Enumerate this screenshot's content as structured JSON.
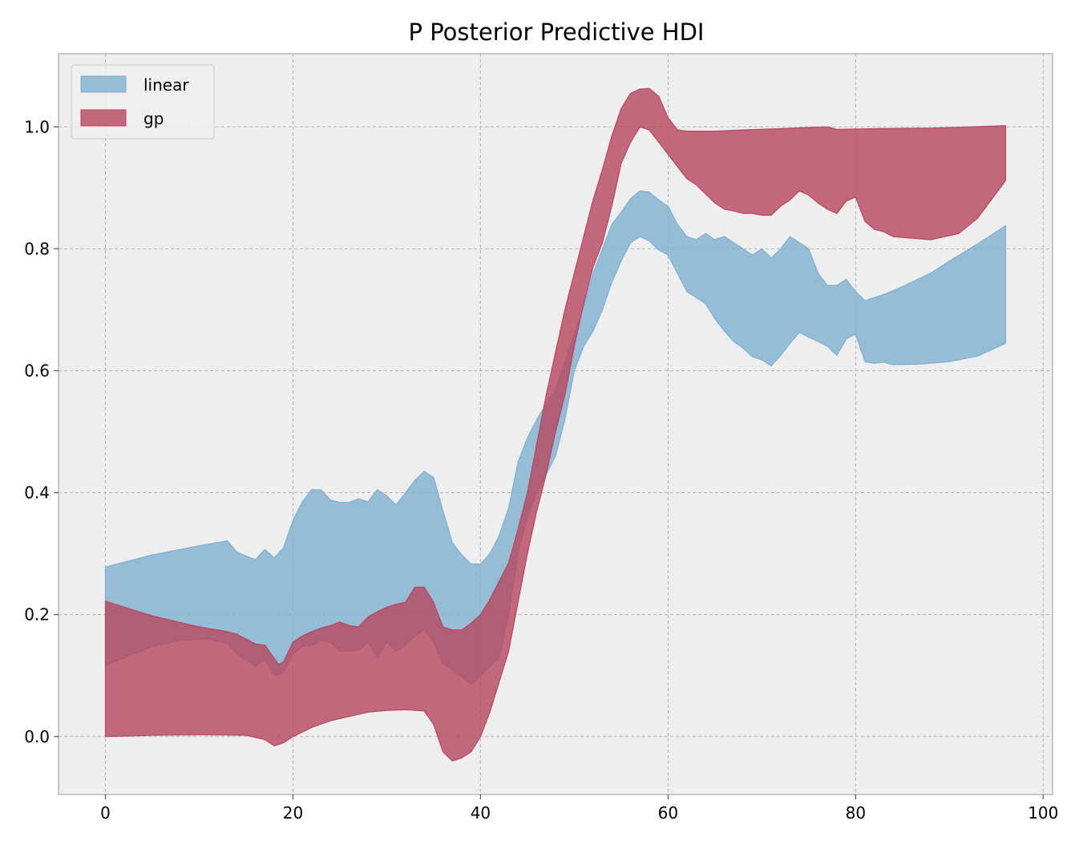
{
  "chart_data": {
    "type": "area",
    "title": "P Posterior Predictive HDI",
    "xlabel": "",
    "ylabel": "",
    "xlim": [
      -5,
      101
    ],
    "ylim": [
      -0.095,
      1.12
    ],
    "x_ticks": [
      0,
      20,
      40,
      60,
      80,
      100
    ],
    "x_tick_labels": [
      "0",
      "20",
      "40",
      "60",
      "80",
      "100"
    ],
    "y_ticks": [
      0.0,
      0.2,
      0.4,
      0.6,
      0.8,
      1.0
    ],
    "y_tick_labels": [
      "0.0",
      "0.2",
      "0.4",
      "0.6",
      "0.8",
      "1.0"
    ],
    "grid": true,
    "legend_position": "top-left",
    "background": "#eeeeee",
    "series": [
      {
        "name": "linear",
        "color": "#7fb0d0",
        "upper": [
          [
            0,
            0.278
          ],
          [
            5,
            0.298
          ],
          [
            10,
            0.313
          ],
          [
            13,
            0.321
          ],
          [
            14,
            0.303
          ],
          [
            15,
            0.296
          ],
          [
            16,
            0.29
          ],
          [
            17,
            0.307
          ],
          [
            18,
            0.293
          ],
          [
            19,
            0.31
          ],
          [
            20,
            0.355
          ],
          [
            21,
            0.385
          ],
          [
            22,
            0.405
          ],
          [
            23,
            0.405
          ],
          [
            24,
            0.388
          ],
          [
            25,
            0.384
          ],
          [
            26,
            0.384
          ],
          [
            27,
            0.39
          ],
          [
            28,
            0.385
          ],
          [
            29,
            0.405
          ],
          [
            30,
            0.395
          ],
          [
            31,
            0.38
          ],
          [
            32,
            0.4
          ],
          [
            33,
            0.42
          ],
          [
            34,
            0.435
          ],
          [
            35,
            0.425
          ],
          [
            36,
            0.37
          ],
          [
            37,
            0.318
          ],
          [
            38,
            0.298
          ],
          [
            39,
            0.283
          ],
          [
            40,
            0.283
          ],
          [
            41,
            0.3
          ],
          [
            42,
            0.33
          ],
          [
            43,
            0.375
          ],
          [
            44,
            0.45
          ],
          [
            45,
            0.49
          ],
          [
            46,
            0.52
          ],
          [
            47,
            0.545
          ],
          [
            48,
            0.57
          ],
          [
            49,
            0.615
          ],
          [
            50,
            0.66
          ],
          [
            51,
            0.705
          ],
          [
            52,
            0.76
          ],
          [
            53,
            0.8
          ],
          [
            54,
            0.84
          ],
          [
            55,
            0.86
          ],
          [
            56,
            0.882
          ],
          [
            57,
            0.895
          ],
          [
            58,
            0.893
          ],
          [
            59,
            0.88
          ],
          [
            60,
            0.87
          ],
          [
            61,
            0.84
          ],
          [
            62,
            0.82
          ],
          [
            63,
            0.815
          ],
          [
            64,
            0.825
          ],
          [
            65,
            0.815
          ],
          [
            66,
            0.82
          ],
          [
            67,
            0.81
          ],
          [
            68,
            0.8
          ],
          [
            69,
            0.79
          ],
          [
            70,
            0.8
          ],
          [
            71,
            0.785
          ],
          [
            72,
            0.8
          ],
          [
            73,
            0.82
          ],
          [
            74,
            0.81
          ],
          [
            75,
            0.8
          ],
          [
            76,
            0.76
          ],
          [
            77,
            0.74
          ],
          [
            78,
            0.74
          ],
          [
            79,
            0.75
          ],
          [
            80,
            0.73
          ],
          [
            81,
            0.715
          ],
          [
            82,
            0.72
          ],
          [
            83,
            0.725
          ],
          [
            85,
            0.738
          ],
          [
            88,
            0.76
          ],
          [
            90,
            0.78
          ],
          [
            93,
            0.808
          ],
          [
            96,
            0.838
          ]
        ],
        "lower": [
          [
            0,
            0.117
          ],
          [
            5,
            0.148
          ],
          [
            8,
            0.158
          ],
          [
            11,
            0.16
          ],
          [
            13,
            0.153
          ],
          [
            14,
            0.135
          ],
          [
            15,
            0.125
          ],
          [
            16,
            0.115
          ],
          [
            17,
            0.127
          ],
          [
            18,
            0.1
          ],
          [
            19,
            0.105
          ],
          [
            20,
            0.135
          ],
          [
            21,
            0.148
          ],
          [
            22,
            0.15
          ],
          [
            23,
            0.158
          ],
          [
            24,
            0.155
          ],
          [
            25,
            0.14
          ],
          [
            26,
            0.14
          ],
          [
            27,
            0.142
          ],
          [
            28,
            0.155
          ],
          [
            29,
            0.13
          ],
          [
            30,
            0.155
          ],
          [
            31,
            0.14
          ],
          [
            32,
            0.15
          ],
          [
            33,
            0.165
          ],
          [
            34,
            0.175
          ],
          [
            35,
            0.155
          ],
          [
            36,
            0.12
          ],
          [
            37,
            0.11
          ],
          [
            38,
            0.098
          ],
          [
            39,
            0.085
          ],
          [
            40,
            0.1
          ],
          [
            41,
            0.115
          ],
          [
            42,
            0.13
          ],
          [
            43,
            0.2
          ],
          [
            44,
            0.3
          ],
          [
            45,
            0.36
          ],
          [
            46,
            0.4
          ],
          [
            47,
            0.43
          ],
          [
            48,
            0.46
          ],
          [
            49,
            0.52
          ],
          [
            50,
            0.6
          ],
          [
            51,
            0.64
          ],
          [
            52,
            0.665
          ],
          [
            53,
            0.7
          ],
          [
            54,
            0.745
          ],
          [
            55,
            0.78
          ],
          [
            56,
            0.81
          ],
          [
            57,
            0.82
          ],
          [
            58,
            0.813
          ],
          [
            59,
            0.798
          ],
          [
            60,
            0.79
          ],
          [
            61,
            0.76
          ],
          [
            62,
            0.73
          ],
          [
            63,
            0.72
          ],
          [
            64,
            0.71
          ],
          [
            65,
            0.685
          ],
          [
            66,
            0.665
          ],
          [
            67,
            0.648
          ],
          [
            68,
            0.637
          ],
          [
            69,
            0.623
          ],
          [
            70,
            0.618
          ],
          [
            71,
            0.608
          ],
          [
            72,
            0.625
          ],
          [
            73,
            0.645
          ],
          [
            74,
            0.663
          ],
          [
            75,
            0.655
          ],
          [
            76,
            0.648
          ],
          [
            77,
            0.64
          ],
          [
            78,
            0.625
          ],
          [
            79,
            0.652
          ],
          [
            80,
            0.66
          ],
          [
            81,
            0.615
          ],
          [
            82,
            0.612
          ],
          [
            83,
            0.614
          ],
          [
            84,
            0.61
          ],
          [
            87,
            0.611
          ],
          [
            90,
            0.615
          ],
          [
            93,
            0.624
          ],
          [
            96,
            0.645
          ]
        ]
      },
      {
        "name": "gp",
        "color": "#b8465f",
        "upper": [
          [
            0,
            0.222
          ],
          [
            5,
            0.198
          ],
          [
            10,
            0.18
          ],
          [
            13,
            0.172
          ],
          [
            14,
            0.168
          ],
          [
            15,
            0.16
          ],
          [
            16,
            0.152
          ],
          [
            17,
            0.15
          ],
          [
            18,
            0.128
          ],
          [
            18.5,
            0.118
          ],
          [
            19,
            0.123
          ],
          [
            20,
            0.155
          ],
          [
            21,
            0.165
          ],
          [
            22,
            0.172
          ],
          [
            23,
            0.178
          ],
          [
            24,
            0.182
          ],
          [
            25,
            0.188
          ],
          [
            26,
            0.182
          ],
          [
            27,
            0.18
          ],
          [
            28,
            0.196
          ],
          [
            29,
            0.205
          ],
          [
            30,
            0.212
          ],
          [
            31,
            0.217
          ],
          [
            32,
            0.22
          ],
          [
            33,
            0.245
          ],
          [
            34,
            0.245
          ],
          [
            35,
            0.22
          ],
          [
            36,
            0.18
          ],
          [
            37,
            0.175
          ],
          [
            38,
            0.175
          ],
          [
            39,
            0.186
          ],
          [
            40,
            0.2
          ],
          [
            41,
            0.225
          ],
          [
            42,
            0.255
          ],
          [
            43,
            0.285
          ],
          [
            44,
            0.34
          ],
          [
            45,
            0.4
          ],
          [
            46,
            0.48
          ],
          [
            47,
            0.56
          ],
          [
            48,
            0.63
          ],
          [
            49,
            0.7
          ],
          [
            50,
            0.76
          ],
          [
            51,
            0.82
          ],
          [
            52,
            0.88
          ],
          [
            53,
            0.93
          ],
          [
            54,
            0.985
          ],
          [
            55,
            1.03
          ],
          [
            56,
            1.055
          ],
          [
            57,
            1.062
          ],
          [
            58,
            1.063
          ],
          [
            59,
            1.05
          ],
          [
            60,
            1.015
          ],
          [
            61,
            0.995
          ],
          [
            62,
            0.993
          ],
          [
            65,
            0.993
          ],
          [
            68,
            0.995
          ],
          [
            72,
            0.997
          ],
          [
            75,
            0.999
          ],
          [
            77,
            1.0
          ],
          [
            78,
            0.996
          ],
          [
            82,
            0.997
          ],
          [
            88,
            0.998
          ],
          [
            92,
            1.0
          ],
          [
            96,
            1.002
          ]
        ],
        "lower": [
          [
            0,
            0.0
          ],
          [
            5,
            0.002
          ],
          [
            10,
            0.003
          ],
          [
            15,
            0.002
          ],
          [
            17,
            -0.005
          ],
          [
            18,
            -0.015
          ],
          [
            19,
            -0.01
          ],
          [
            20,
            0.0
          ],
          [
            22,
            0.015
          ],
          [
            24,
            0.026
          ],
          [
            26,
            0.033
          ],
          [
            28,
            0.04
          ],
          [
            30,
            0.043
          ],
          [
            32,
            0.044
          ],
          [
            34,
            0.042
          ],
          [
            35,
            0.02
          ],
          [
            36,
            -0.025
          ],
          [
            37,
            -0.04
          ],
          [
            38,
            -0.035
          ],
          [
            39,
            -0.025
          ],
          [
            40,
            0.0
          ],
          [
            41,
            0.04
          ],
          [
            42,
            0.09
          ],
          [
            43,
            0.14
          ],
          [
            44,
            0.22
          ],
          [
            45,
            0.3
          ],
          [
            46,
            0.37
          ],
          [
            47,
            0.43
          ],
          [
            48,
            0.5
          ],
          [
            49,
            0.56
          ],
          [
            50,
            0.64
          ],
          [
            51,
            0.71
          ],
          [
            52,
            0.77
          ],
          [
            53,
            0.81
          ],
          [
            54,
            0.87
          ],
          [
            55,
            0.94
          ],
          [
            56,
            0.975
          ],
          [
            57,
            1.0
          ],
          [
            58,
            0.995
          ],
          [
            59,
            0.975
          ],
          [
            60,
            0.955
          ],
          [
            61,
            0.935
          ],
          [
            62,
            0.915
          ],
          [
            63,
            0.905
          ],
          [
            64,
            0.89
          ],
          [
            65,
            0.875
          ],
          [
            66,
            0.865
          ],
          [
            67,
            0.862
          ],
          [
            68,
            0.858
          ],
          [
            69,
            0.858
          ],
          [
            70,
            0.855
          ],
          [
            71,
            0.855
          ],
          [
            72,
            0.87
          ],
          [
            73,
            0.88
          ],
          [
            74,
            0.895
          ],
          [
            75,
            0.888
          ],
          [
            76,
            0.875
          ],
          [
            77,
            0.865
          ],
          [
            78,
            0.858
          ],
          [
            79,
            0.878
          ],
          [
            80,
            0.885
          ],
          [
            81,
            0.845
          ],
          [
            82,
            0.832
          ],
          [
            83,
            0.828
          ],
          [
            84,
            0.82
          ],
          [
            88,
            0.815
          ],
          [
            91,
            0.825
          ],
          [
            93,
            0.85
          ],
          [
            96,
            0.912
          ]
        ]
      }
    ]
  }
}
